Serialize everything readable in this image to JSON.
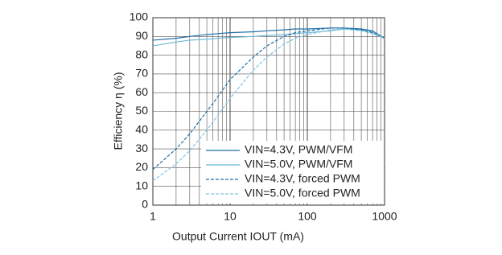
{
  "chart_data": {
    "type": "line",
    "x_label": "Output Current IOUT (mA)",
    "y_label": "Efficiency η (%)",
    "x": [
      1,
      2,
      3,
      5,
      7,
      10,
      20,
      30,
      50,
      70,
      100,
      200,
      300,
      500,
      700,
      1000
    ],
    "series": [
      {
        "name": "VIN=4.3V, PWM/VFM",
        "color": "#1f6fa8",
        "style": "solid",
        "values": [
          88,
          89,
          90,
          91,
          91.5,
          92,
          92.5,
          93,
          93.5,
          94,
          94,
          94.5,
          94.5,
          94,
          93,
          89
        ]
      },
      {
        "name": "VIN=5.0V, PWM/VFM",
        "color": "#6bb6d6",
        "style": "solid",
        "values": [
          85,
          87,
          88,
          88.5,
          89,
          89.5,
          90,
          90.5,
          91,
          91.5,
          92,
          93,
          94,
          93.5,
          92.5,
          89
        ]
      },
      {
        "name": "VIN=4.3V, forced PWM",
        "color": "#1f6fa8",
        "style": "dashed",
        "values": [
          19,
          30,
          38,
          50,
          58,
          67,
          79,
          85,
          90,
          92,
          93,
          94.5,
          94.5,
          93.5,
          92,
          89
        ]
      },
      {
        "name": "VIN=5.0V, forced PWM",
        "color": "#7cc3e0",
        "style": "dashed",
        "values": [
          13,
          22,
          29,
          40,
          48,
          57,
          72,
          79,
          86,
          89,
          91,
          93.5,
          94,
          93,
          91.5,
          89
        ]
      }
    ],
    "xlim": [
      1,
      1000
    ],
    "xticks": [
      1,
      10,
      100,
      1000
    ],
    "xscale": "log",
    "ylim": [
      0,
      100
    ],
    "yticks": [
      0,
      10,
      20,
      30,
      40,
      50,
      60,
      70,
      80,
      90,
      100
    ],
    "grid": true,
    "legend": "lower right"
  }
}
